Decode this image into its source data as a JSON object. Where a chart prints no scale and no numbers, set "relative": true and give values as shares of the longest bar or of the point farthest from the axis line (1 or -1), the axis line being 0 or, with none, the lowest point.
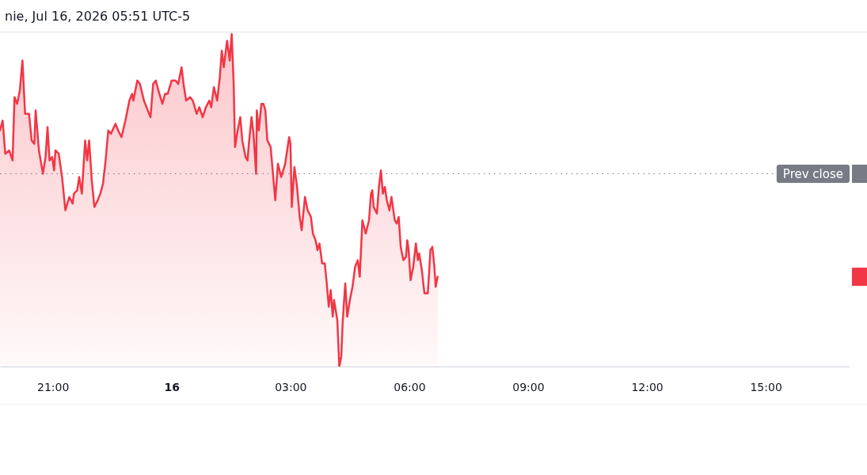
{
  "chart_data": {
    "type": "area",
    "title": "nie, Jul 16, 2026 05:51 UTC-5",
    "relative": true,
    "tick_labels": "x",
    "xlim": [
      "2026-07-15T19:40",
      "2026-07-16T17:07"
    ],
    "xticks": [
      {
        "value": "2026-07-15T21:00",
        "label": "21:00"
      },
      {
        "value": "2026-07-16T00:00",
        "label": "16"
      },
      {
        "value": "2026-07-16T03:00",
        "label": "03:00"
      },
      {
        "value": "2026-07-16T06:00",
        "label": "06:00"
      },
      {
        "value": "2026-07-16T09:00",
        "label": "09:00"
      },
      {
        "value": "2026-07-16T12:00",
        "label": "12:00"
      },
      {
        "value": "2026-07-16T15:00",
        "label": "15:00"
      }
    ],
    "x": [
      "2026-07-15T19:40",
      "2026-07-15T19:44",
      "2026-07-15T19:48",
      "2026-07-15T19:54",
      "2026-07-15T19:59",
      "2026-07-15T20:02",
      "2026-07-15T20:06",
      "2026-07-15T20:10",
      "2026-07-15T20:14",
      "2026-07-15T20:18",
      "2026-07-15T20:24",
      "2026-07-15T20:28",
      "2026-07-15T20:32",
      "2026-07-15T20:34",
      "2026-07-15T20:39",
      "2026-07-15T20:45",
      "2026-07-15T20:49",
      "2026-07-15T20:52",
      "2026-07-15T20:55",
      "2026-07-15T20:59",
      "2026-07-15T21:02",
      "2026-07-15T21:04",
      "2026-07-15T21:09",
      "2026-07-15T21:14",
      "2026-07-15T21:19",
      "2026-07-15T21:25",
      "2026-07-15T21:30",
      "2026-07-15T21:32",
      "2026-07-15T21:37",
      "2026-07-15T21:40",
      "2026-07-15T21:44",
      "2026-07-15T21:49",
      "2026-07-15T21:52",
      "2026-07-15T21:55",
      "2026-07-15T21:59",
      "2026-07-15T22:03",
      "2026-07-15T22:08",
      "2026-07-15T22:12",
      "2026-07-15T22:16",
      "2026-07-15T22:20",
      "2026-07-15T22:24",
      "2026-07-15T22:28",
      "2026-07-15T22:35",
      "2026-07-15T22:39",
      "2026-07-15T22:44",
      "2026-07-15T22:50",
      "2026-07-15T22:56",
      "2026-07-15T23:00",
      "2026-07-15T23:02",
      "2026-07-15T23:08",
      "2026-07-15T23:12",
      "2026-07-15T23:18",
      "2026-07-15T23:24",
      "2026-07-15T23:28",
      "2026-07-15T23:32",
      "2026-07-15T23:36",
      "2026-07-15T23:40",
      "2026-07-15T23:46",
      "2026-07-15T23:50",
      "2026-07-15T23:54",
      "2026-07-16T00:00",
      "2026-07-16T00:06",
      "2026-07-16T00:10",
      "2026-07-16T00:15",
      "2026-07-16T00:18",
      "2026-07-16T00:22",
      "2026-07-16T00:28",
      "2026-07-16T00:32",
      "2026-07-16T00:38",
      "2026-07-16T00:42",
      "2026-07-16T00:47",
      "2026-07-16T00:52",
      "2026-07-16T00:57",
      "2026-07-16T01:00",
      "2026-07-16T01:04",
      "2026-07-16T01:09",
      "2026-07-16T01:13",
      "2026-07-16T01:16",
      "2026-07-16T01:19",
      "2026-07-16T01:24",
      "2026-07-16T01:28",
      "2026-07-16T01:31",
      "2026-07-16T01:34",
      "2026-07-16T01:36",
      "2026-07-16T01:40",
      "2026-07-16T01:44",
      "2026-07-16T01:47",
      "2026-07-16T01:52",
      "2026-07-16T01:55",
      "2026-07-16T01:57",
      "2026-07-16T02:01",
      "2026-07-16T02:04",
      "2026-07-16T02:08",
      "2026-07-16T02:09",
      "2026-07-16T02:12",
      "2026-07-16T02:16",
      "2026-07-16T02:19",
      "2026-07-16T02:22",
      "2026-07-16T02:25",
      "2026-07-16T02:30",
      "2026-07-16T02:37",
      "2026-07-16T02:41",
      "2026-07-16T02:46",
      "2026-07-16T02:52",
      "2026-07-16T02:58",
      "2026-07-16T03:00",
      "2026-07-16T03:02",
      "2026-07-16T03:06",
      "2026-07-16T03:10",
      "2026-07-16T03:14",
      "2026-07-16T03:17",
      "2026-07-16T03:22",
      "2026-07-16T03:26",
      "2026-07-16T03:31",
      "2026-07-16T03:34",
      "2026-07-16T03:38",
      "2026-07-16T03:41",
      "2026-07-16T03:44",
      "2026-07-16T03:48",
      "2026-07-16T03:52",
      "2026-07-16T03:55",
      "2026-07-16T03:58",
      "2026-07-16T04:01",
      "2026-07-16T04:04",
      "2026-07-16T04:06",
      "2026-07-16T04:11",
      "2026-07-16T04:14",
      "2026-07-16T04:17",
      "2026-07-16T04:19",
      "2026-07-16T04:23",
      "2026-07-16T04:26",
      "2026-07-16T04:30",
      "2026-07-16T04:34",
      "2026-07-16T04:38",
      "2026-07-16T04:42",
      "2026-07-16T04:45",
      "2026-07-16T04:49",
      "2026-07-16T04:54",
      "2026-07-16T04:59",
      "2026-07-16T05:02",
      "2026-07-16T05:04",
      "2026-07-16T05:06",
      "2026-07-16T05:11",
      "2026-07-16T05:14",
      "2026-07-16T05:17",
      "2026-07-16T05:20",
      "2026-07-16T05:23",
      "2026-07-16T05:26",
      "2026-07-16T05:30",
      "2026-07-16T05:33",
      "2026-07-16T05:38",
      "2026-07-16T05:41",
      "2026-07-16T05:44",
      "2026-07-16T05:47",
      "2026-07-16T05:51",
      "2026-07-16T05:55",
      "2026-07-16T05:57",
      "2026-07-16T05:59",
      "2026-07-16T06:02",
      "2026-07-16T06:06",
      "2026-07-16T06:10",
      "2026-07-16T06:13",
      "2026-07-16T06:15",
      "2026-07-16T06:19",
      "2026-07-16T06:23",
      "2026-07-16T06:28",
      "2026-07-16T06:30",
      "2026-07-16T06:32",
      "2026-07-16T06:35",
      "2026-07-16T06:38",
      "2026-07-16T06:40",
      "2026-07-16T06:43"
    ],
    "series": [
      {
        "color": "#f23645",
        "values": [
          0.71,
          0.74,
          0.64,
          0.65,
          0.62,
          0.81,
          0.79,
          0.83,
          0.92,
          0.76,
          0.76,
          0.68,
          0.67,
          0.77,
          0.65,
          0.58,
          0.63,
          0.72,
          0.62,
          0.63,
          0.59,
          0.65,
          0.64,
          0.57,
          0.47,
          0.51,
          0.49,
          0.52,
          0.53,
          0.57,
          0.52,
          0.68,
          0.62,
          0.68,
          0.56,
          0.48,
          0.5,
          0.52,
          0.55,
          0.62,
          0.71,
          0.7,
          0.73,
          0.71,
          0.69,
          0.74,
          0.8,
          0.82,
          0.8,
          0.86,
          0.85,
          0.8,
          0.77,
          0.75,
          0.85,
          0.86,
          0.83,
          0.79,
          0.82,
          0.82,
          0.86,
          0.86,
          0.85,
          0.9,
          0.85,
          0.8,
          0.81,
          0.8,
          0.76,
          0.78,
          0.75,
          0.78,
          0.8,
          0.78,
          0.84,
          0.8,
          0.87,
          0.95,
          0.9,
          0.98,
          0.92,
          1,
          0.85,
          0.66,
          0.71,
          0.75,
          0.68,
          0.63,
          0.62,
          0.67,
          0.75,
          0.7,
          0.58,
          0.77,
          0.71,
          0.79,
          0.79,
          0.77,
          0.68,
          0.66,
          0.5,
          0.61,
          0.57,
          0.61,
          0.69,
          0.67,
          0.48,
          0.6,
          0.54,
          0.45,
          0.41,
          0.51,
          0.47,
          0.45,
          0.4,
          0.38,
          0.35,
          0.37,
          0.31,
          0.31,
          0.25,
          0.18,
          0.23,
          0.15,
          0.2,
          0.14,
          0,
          0.03,
          0.13,
          0.25,
          0.15,
          0.2,
          0.24,
          0.3,
          0.32,
          0.27,
          0.44,
          0.4,
          0.44,
          0.52,
          0.53,
          0.48,
          0.46,
          0.54,
          0.59,
          0.52,
          0.54,
          0.5,
          0.47,
          0.51,
          0.44,
          0.43,
          0.45,
          0.36,
          0.32,
          0.33,
          0.38,
          0.35,
          0.26,
          0.3,
          0.37,
          0.32,
          0.34,
          0.29,
          0.22,
          0.22,
          0.28,
          0.35,
          0.36,
          0.3,
          0.24,
          0.27
        ]
      }
    ],
    "ref_lines": [
      {
        "axis": "y",
        "value": 0.58,
        "label": "Prev close",
        "line_style": "dotted",
        "color": "#787b86"
      }
    ]
  }
}
